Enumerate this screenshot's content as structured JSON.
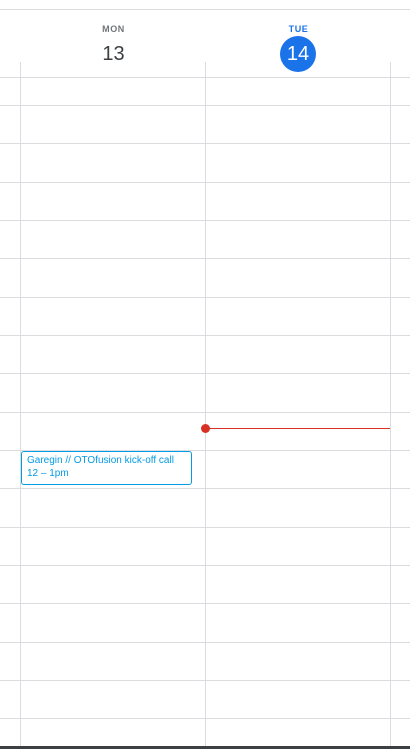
{
  "days": [
    {
      "dow": "MON",
      "num": "13"
    },
    {
      "dow": "TUE",
      "num": "14"
    }
  ],
  "event": {
    "title": "Garegin // OTOfusion kick-off call",
    "time": "12 – 1pm"
  },
  "colors": {
    "today": "#1a73e8",
    "event": "#039be5",
    "now_line": "#d93025",
    "grid": "#dadce0"
  }
}
